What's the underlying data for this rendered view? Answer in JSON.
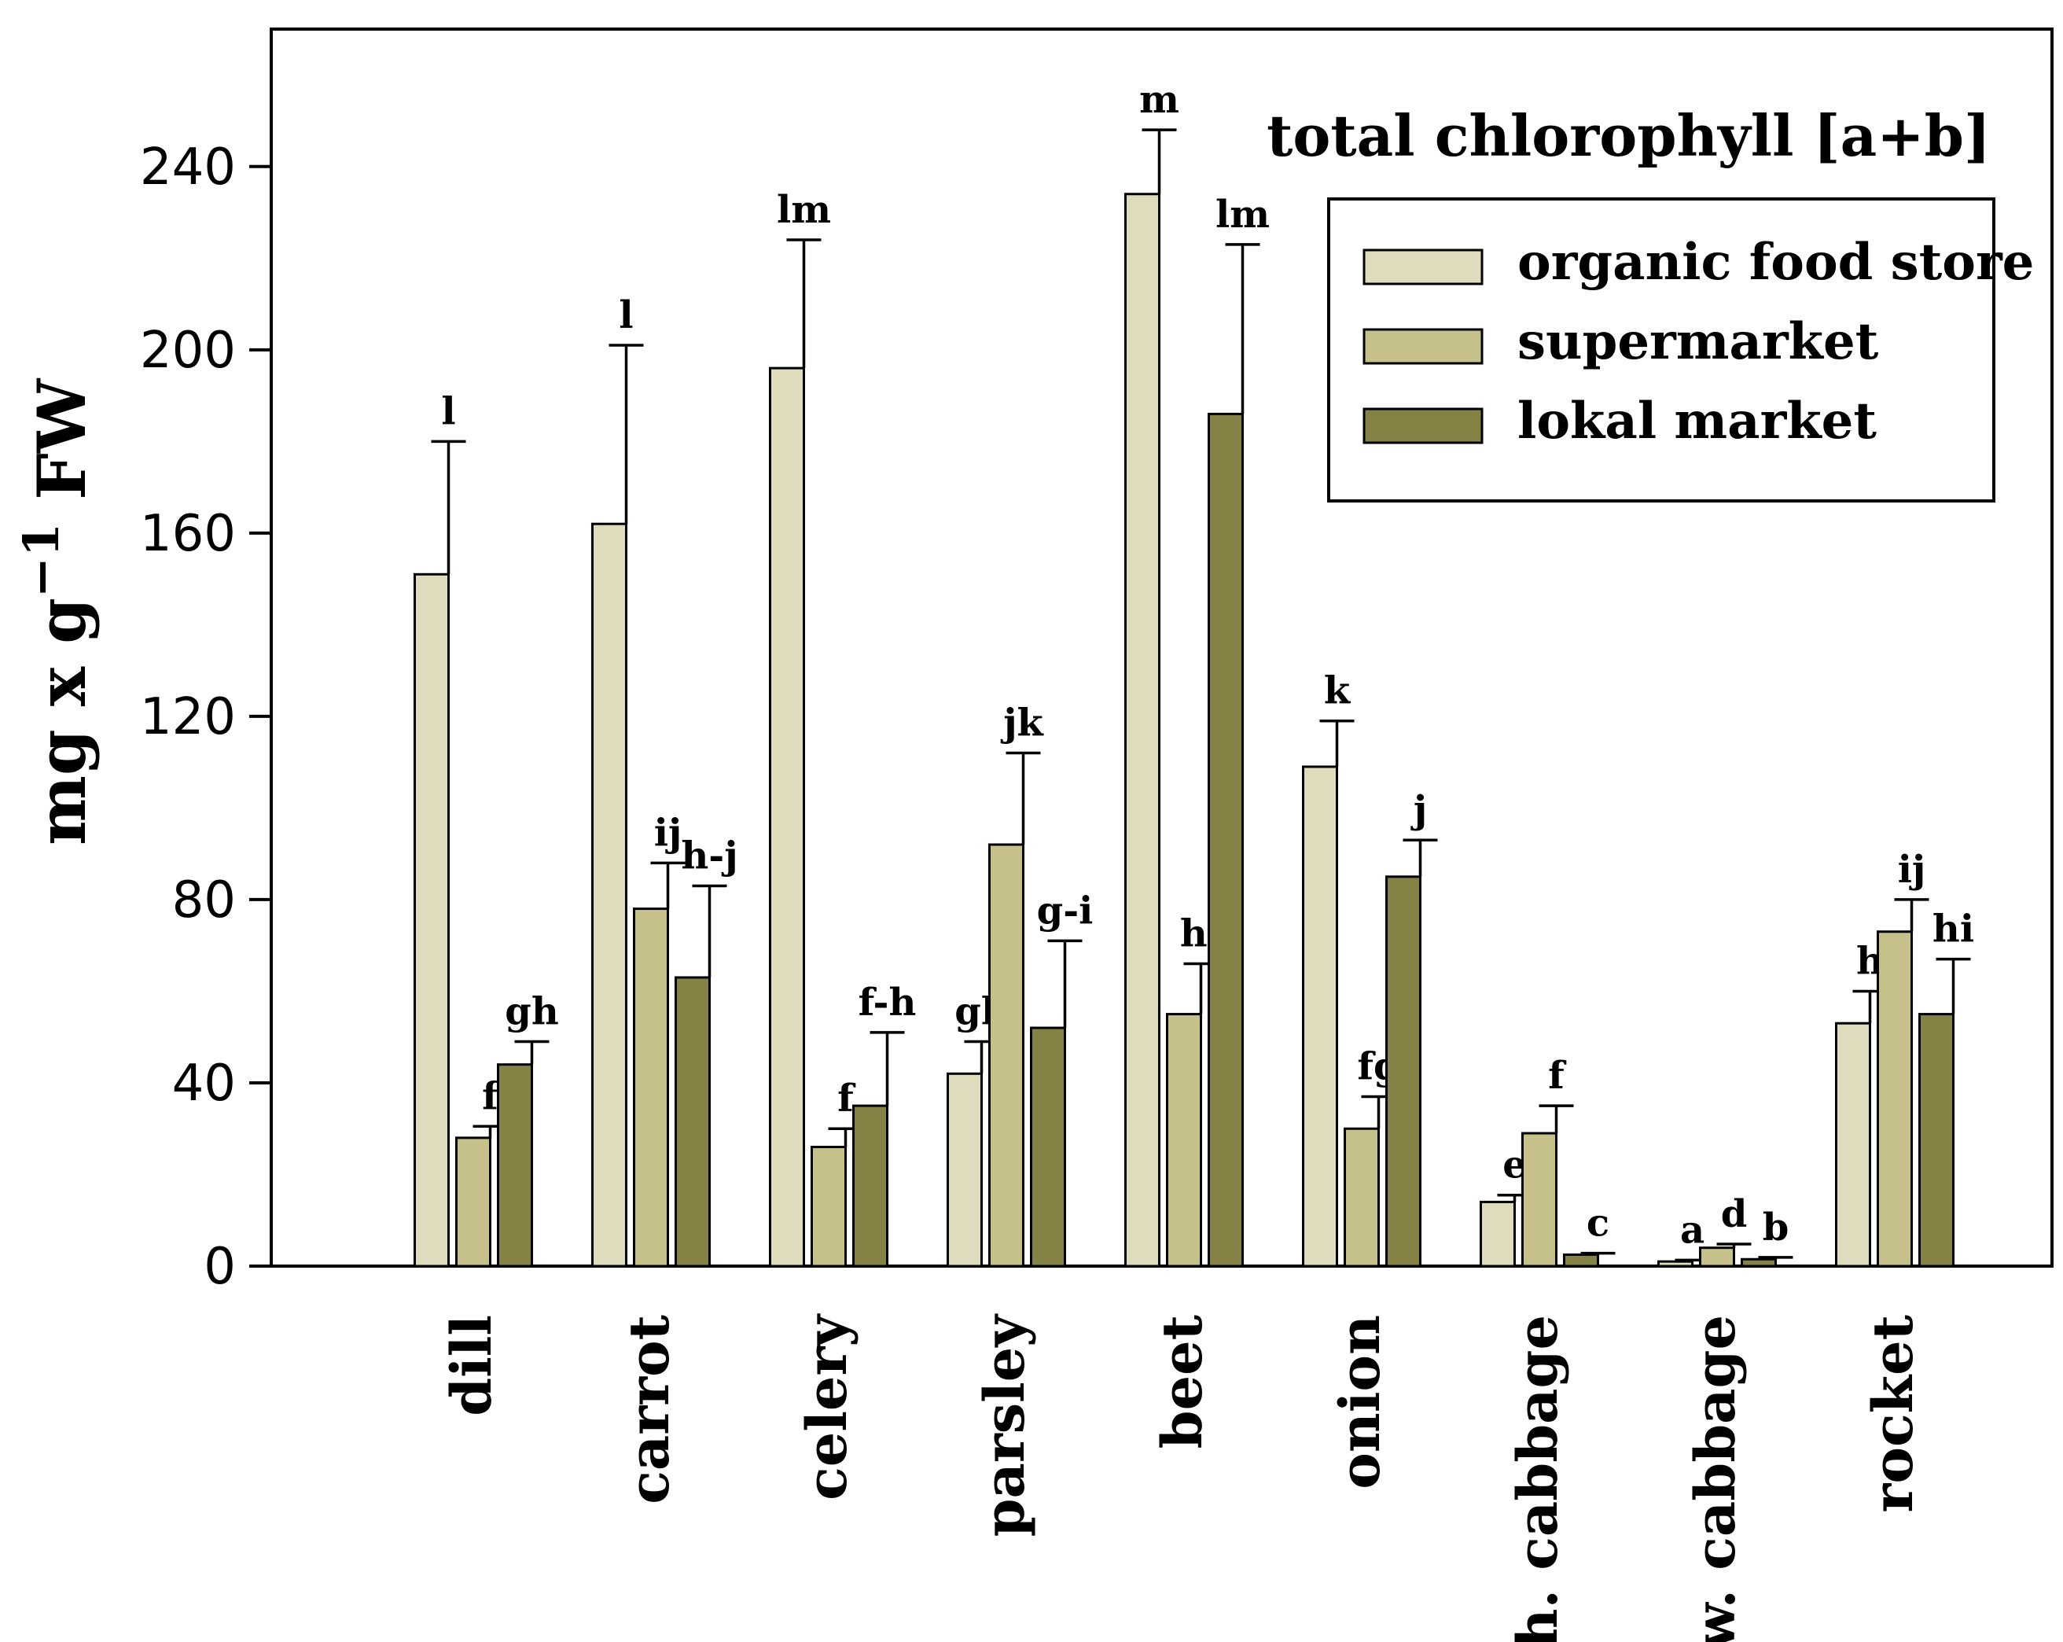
{
  "chart_data": {
    "type": "bar",
    "title": "total chlorophyll [a+b]",
    "ylabel": "mg x g",
    "ylabel_exponent": "−1",
    "ylabel_suffix": " FW",
    "xlabel": "",
    "ylim": [
      0,
      270
    ],
    "yticks": [
      0,
      40,
      80,
      120,
      160,
      200,
      240
    ],
    "legend_position": "top-right",
    "categories": [
      "dill",
      "carrot",
      "celery",
      "parsley",
      "beet",
      "onion",
      "ch. cabbage",
      "w. cabbage",
      "rocket"
    ],
    "series": [
      {
        "name": "organic food store",
        "color": "#dfdcbe",
        "values": [
          151,
          162,
          196,
          42,
          234,
          109,
          14,
          1,
          53
        ],
        "errors": [
          29,
          39,
          28,
          7,
          14,
          10,
          1.5,
          0.3,
          7
        ],
        "labels": [
          "l",
          "l",
          "lm",
          "gh",
          "m",
          "k",
          "e",
          "a",
          "h"
        ]
      },
      {
        "name": "supermarket",
        "color": "#c6c18a",
        "values": [
          28,
          78,
          26,
          92,
          55,
          30,
          29,
          4,
          73
        ],
        "errors": [
          2.5,
          10,
          4,
          20,
          11,
          7,
          6,
          0.8,
          7
        ],
        "labels": [
          "f",
          "ij",
          "f",
          "jk",
          "hi",
          "fg",
          "f",
          "d",
          "ij"
        ]
      },
      {
        "name": "lokal market",
        "color": "#848244",
        "values": [
          44,
          63,
          35,
          52,
          186,
          85,
          2.5,
          1.5,
          55
        ],
        "errors": [
          5,
          20,
          16,
          19,
          37,
          8,
          0.3,
          0.4,
          12
        ],
        "labels": [
          "gh",
          "h-j",
          "f-h",
          "g-i",
          "lm",
          "j",
          "c",
          "b",
          "hi"
        ]
      }
    ]
  }
}
